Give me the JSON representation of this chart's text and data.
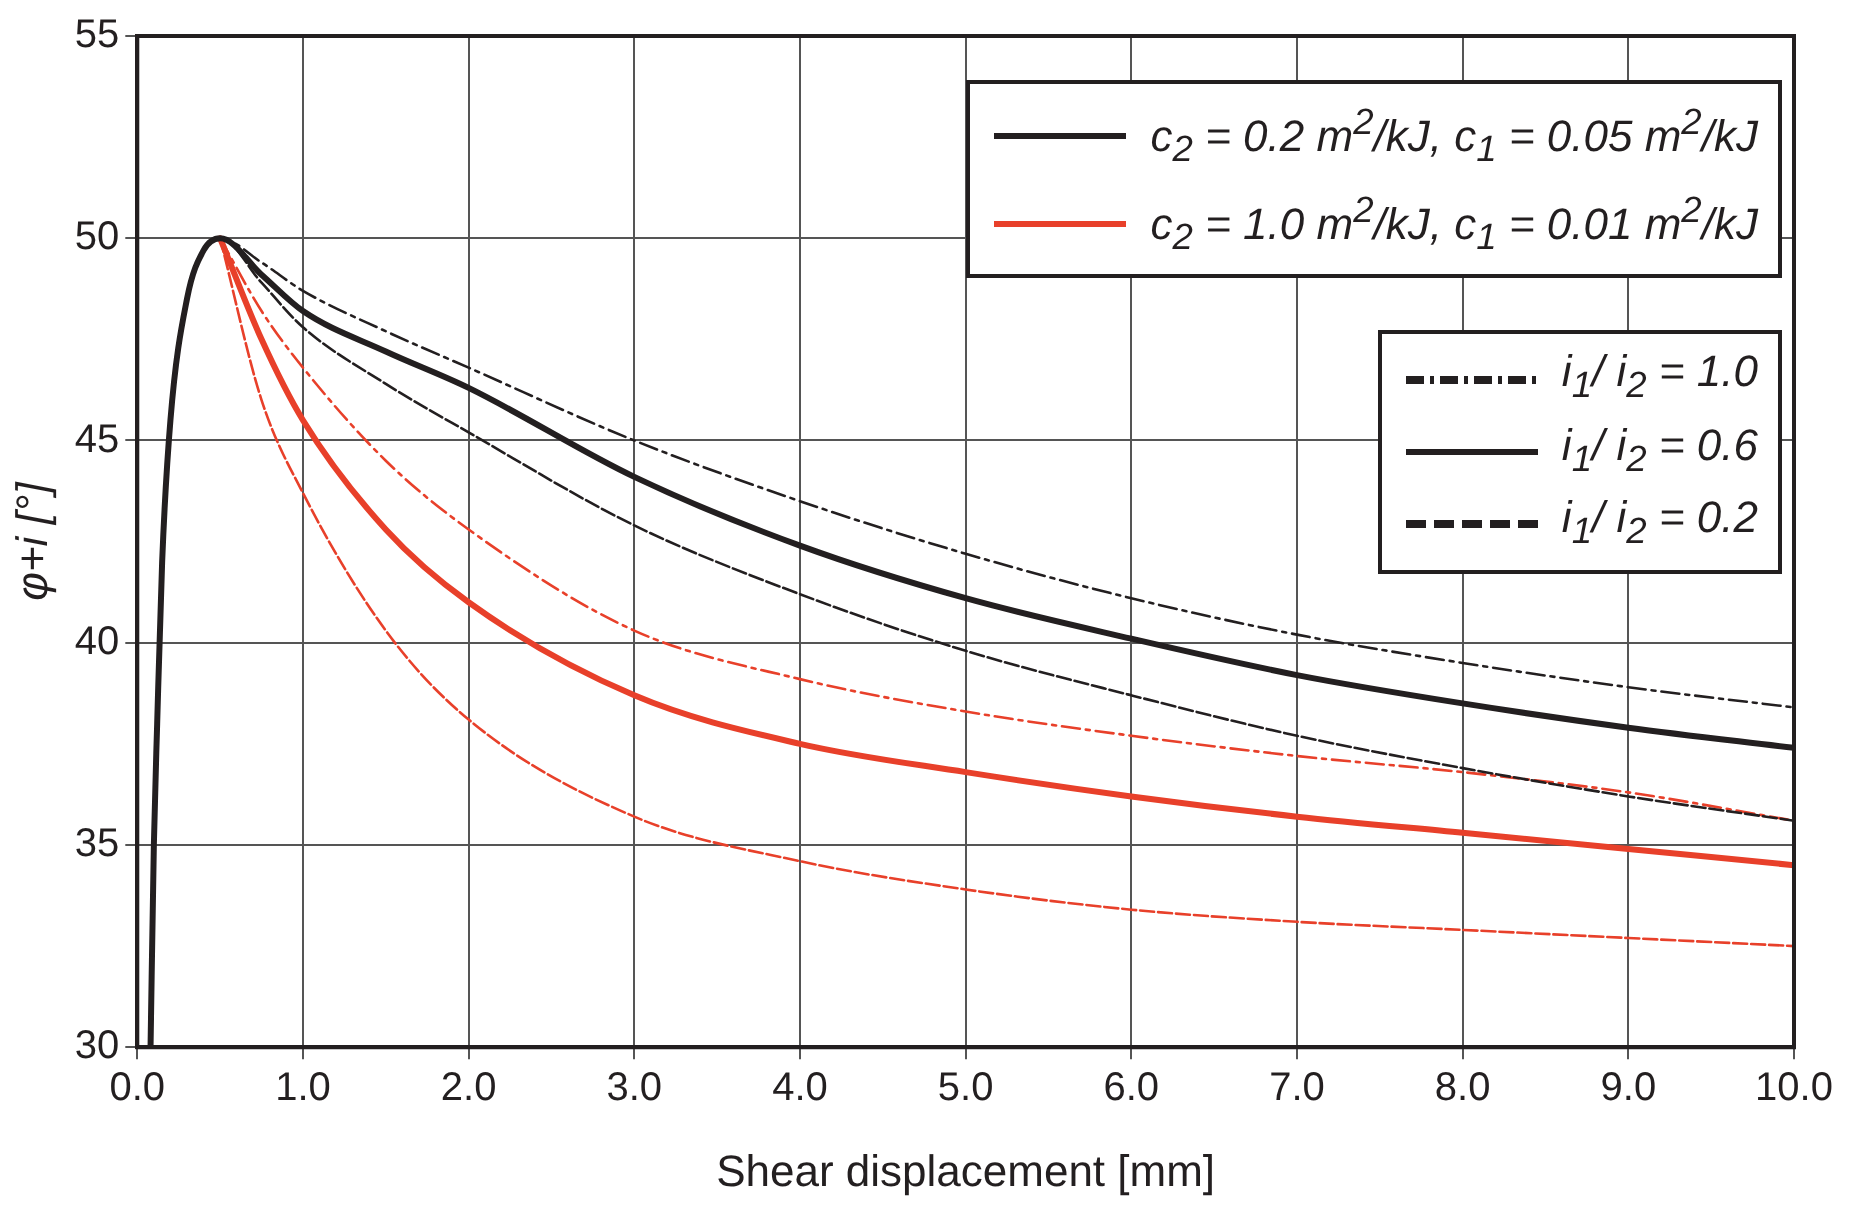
{
  "chart_data": {
    "type": "line",
    "xlabel": "Shear displacement [mm]",
    "ylabel": "φ+i [°]",
    "xlim": [
      0,
      10
    ],
    "xticks": [
      {
        "value": 0,
        "label": "0.0"
      },
      {
        "value": 1,
        "label": "1.0"
      },
      {
        "value": 2,
        "label": "2.0"
      },
      {
        "value": 3,
        "label": "3.0"
      },
      {
        "value": 4,
        "label": "4.0"
      },
      {
        "value": 5,
        "label": "5.0"
      },
      {
        "value": 6,
        "label": "6.0"
      },
      {
        "value": 7,
        "label": "7.0"
      },
      {
        "value": 8,
        "label": "8.0"
      },
      {
        "value": 9,
        "label": "9.0"
      },
      {
        "value": 10,
        "label": "10.0"
      }
    ],
    "ylim": [
      30,
      55
    ],
    "yticks": [
      30,
      35,
      40,
      45,
      50,
      55
    ],
    "grid": true,
    "marker": "none",
    "annotations": [
      "c$_{2}$ = 0.2 m$^{2}$/kJ, c$_{1}$ = 0.05 m$^{2}$/kJ",
      "c$_{2}$ = 1.0 m$^{2}$/kJ, c$_{1}$ = 0.01 m$^{2}$/kJ",
      "i$_{1}$/ i$_{2}$ = 1.0",
      "i$_{1}$/ i$_{2}$ = 0.6",
      "i$_{1}$/ i$_{2}$ = 0.2"
    ],
    "series": [
      {
        "color": "#231f20",
        "line_style": "dotted",
        "x": [
          0.08,
          0.1,
          0.12,
          0.15,
          0.2,
          0.3,
          0.4,
          0.5,
          0.75,
          1,
          1.5,
          2,
          3,
          4,
          5,
          6,
          7,
          8,
          9,
          10
        ],
        "values": [
          30,
          35,
          38,
          42,
          45.5,
          48.5,
          49.7,
          50,
          49.4,
          48.7,
          47.7,
          46.8,
          45.0,
          43.5,
          42.2,
          41.1,
          40.2,
          39.5,
          38.9,
          38.4
        ]
      },
      {
        "color": "#231f20",
        "line_style": "solid",
        "x": [
          0.08,
          0.1,
          0.12,
          0.15,
          0.2,
          0.3,
          0.4,
          0.5,
          0.75,
          1,
          1.5,
          2,
          3,
          4,
          5,
          6,
          7,
          8,
          9,
          10
        ],
        "values": [
          30,
          35,
          38,
          42,
          45.5,
          48.5,
          49.7,
          50,
          49.1,
          48.2,
          47.2,
          46.3,
          44.1,
          42.4,
          41.1,
          40.1,
          39.2,
          38.5,
          37.9,
          37.4
        ]
      },
      {
        "color": "#231f20",
        "line_style": "dashed",
        "x": [
          0.08,
          0.1,
          0.12,
          0.15,
          0.2,
          0.3,
          0.4,
          0.5,
          0.75,
          1,
          1.5,
          2,
          3,
          4,
          5,
          6,
          7,
          8,
          9,
          10
        ],
        "values": [
          30,
          35,
          38,
          42,
          45.5,
          48.5,
          49.7,
          50,
          48.9,
          47.8,
          46.4,
          45.2,
          42.9,
          41.2,
          39.8,
          38.7,
          37.7,
          36.9,
          36.2,
          35.6
        ]
      },
      {
        "color": "#e8402a",
        "line_style": "dotted",
        "x": [
          0.5,
          0.75,
          1,
          1.5,
          2,
          3,
          4,
          5,
          6,
          7,
          8,
          9,
          10
        ],
        "values": [
          50,
          48.2,
          46.8,
          44.5,
          42.8,
          40.3,
          39.1,
          38.3,
          37.7,
          37.2,
          36.8,
          36.3,
          35.6
        ]
      },
      {
        "color": "#e8402a",
        "line_style": "solid",
        "x": [
          0.5,
          0.75,
          1,
          1.5,
          2,
          3,
          4,
          5,
          6,
          7,
          8,
          9,
          10
        ],
        "values": [
          50,
          47.5,
          45.5,
          42.8,
          41.0,
          38.7,
          37.5,
          36.8,
          36.2,
          35.7,
          35.3,
          34.9,
          34.5
        ]
      },
      {
        "color": "#e8402a",
        "line_style": "dashed",
        "x": [
          0.5,
          0.75,
          1,
          1.5,
          2,
          3,
          4,
          5,
          6,
          7,
          8,
          9,
          10
        ],
        "values": [
          50,
          46.0,
          43.7,
          40.3,
          38.1,
          35.7,
          34.6,
          33.9,
          33.4,
          33.1,
          32.9,
          32.7,
          32.5
        ]
      }
    ]
  }
}
